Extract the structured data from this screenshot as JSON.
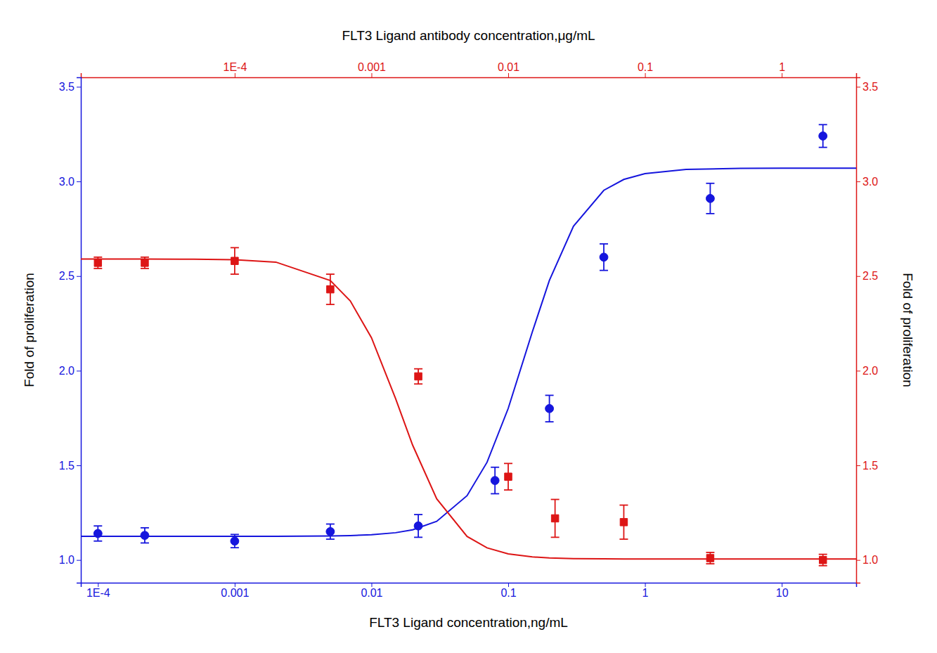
{
  "chart_data": {
    "type": "scatter",
    "log": "x",
    "grid": false,
    "xlabel": "FLT3 Ligand concentration,ng/mL",
    "x2label": "FLT3 Ligand antibody concentration,μg/mL",
    "ylabel": "Fold of proliferation",
    "y2label": "Fold of proliferation",
    "xlim": [
      7.5e-05,
      35.0
    ],
    "xticks": [
      {
        "value": 0.0001,
        "label": "1E-4"
      },
      0.001,
      0.01,
      0.1,
      1,
      10
    ],
    "x2lim": [
      7.5e-06,
      3.5
    ],
    "x2ticks": [
      {
        "value": 0.0001,
        "label": "1E-4"
      },
      0.001,
      0.01,
      0.1,
      1
    ],
    "ylim": [
      0.88,
      3.55
    ],
    "yticks": [
      {
        "value": 1.0,
        "label": "1.0"
      },
      {
        "value": 1.5,
        "label": "1.5"
      },
      {
        "value": 2.0,
        "label": "2.0"
      },
      {
        "value": 2.5,
        "label": "2.5"
      },
      {
        "value": 3.0,
        "label": "3.0"
      },
      {
        "value": 3.5,
        "label": "3.5"
      }
    ],
    "y2lim": [
      0.88,
      3.55
    ],
    "y2ticks": [
      {
        "value": 1.0,
        "label": "1.0"
      },
      {
        "value": 1.5,
        "label": "1.5"
      },
      {
        "value": 2.0,
        "label": "2.0"
      },
      {
        "value": 2.5,
        "label": "2.5"
      },
      {
        "value": 3.0,
        "label": "3.0"
      },
      {
        "value": 3.5,
        "label": "3.5"
      }
    ],
    "series": [
      {
        "type": "line",
        "color": "#1515dd",
        "line_style": "solid",
        "x": [
          7.5e-05,
          0.0001,
          0.0002,
          0.0005,
          0.001,
          0.002,
          0.005,
          0.007,
          0.01,
          0.015,
          0.02,
          0.03,
          0.05,
          0.07,
          0.1,
          0.15,
          0.2,
          0.3,
          0.5,
          0.7,
          1,
          2,
          5,
          10,
          20,
          35
        ],
        "values": [
          1.125,
          1.125,
          1.125,
          1.125,
          1.1251,
          1.1253,
          1.1269,
          1.1289,
          1.1332,
          1.1441,
          1.1596,
          1.2043,
          1.3399,
          1.5162,
          1.8008,
          2.2047,
          2.4774,
          2.7637,
          2.9531,
          3.0105,
          3.0414,
          3.0633,
          3.069,
          3.0698,
          3.0699,
          3.07
        ]
      },
      {
        "type": "scatter",
        "color": "#1515dd",
        "marker": "circle",
        "x": [
          0.0001,
          0.00022,
          0.001,
          0.005,
          0.022,
          0.08,
          0.2,
          0.5,
          3.0,
          20.0
        ],
        "values": [
          1.14,
          1.13,
          1.1,
          1.15,
          1.18,
          1.42,
          1.8,
          2.6,
          2.91,
          3.24
        ],
        "errors": [
          0.04,
          0.04,
          0.035,
          0.04,
          0.06,
          0.07,
          0.07,
          0.07,
          0.08,
          0.06
        ]
      },
      {
        "type": "line",
        "color": "#dd1515",
        "line_style": "solid",
        "axis": "y2",
        "x": [
          7.5e-05,
          0.0001,
          0.0002,
          0.0005,
          0.001,
          0.002,
          0.005,
          0.007,
          0.01,
          0.015,
          0.02,
          0.03,
          0.05,
          0.07,
          0.1,
          0.15,
          0.2,
          0.3,
          0.5,
          0.7,
          1,
          2,
          5,
          10,
          20,
          35
        ],
        "values": [
          2.59,
          2.59,
          2.5899,
          2.5892,
          2.5864,
          2.5738,
          2.4762,
          2.3687,
          2.1742,
          1.8537,
          1.6068,
          1.3229,
          1.1245,
          1.0643,
          1.0326,
          1.0164,
          1.0111,
          1.0075,
          1.0058,
          1.0054,
          1.0052,
          1.005,
          1.005,
          1.005,
          1.005,
          1.005
        ]
      },
      {
        "type": "scatter",
        "color": "#dd1515",
        "marker": "square",
        "axis": "y2",
        "x": [
          0.0001,
          0.00022,
          0.001,
          0.005,
          0.022,
          0.1,
          0.22,
          0.7,
          3.0,
          20.0
        ],
        "values": [
          2.57,
          2.57,
          2.58,
          2.43,
          1.97,
          1.44,
          1.22,
          1.2,
          1.01,
          1.0
        ],
        "errors": [
          0.03,
          0.03,
          0.07,
          0.08,
          0.04,
          0.07,
          0.1,
          0.09,
          0.03,
          0.03
        ]
      }
    ]
  }
}
